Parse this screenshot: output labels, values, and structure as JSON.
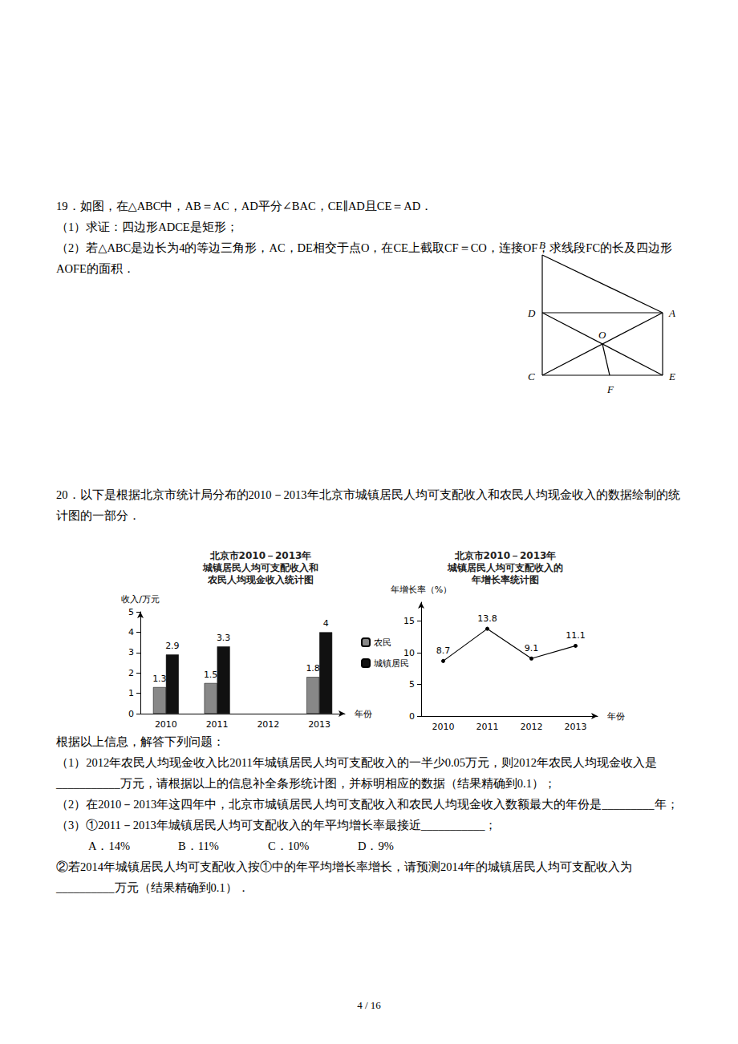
{
  "problem19": {
    "lines": [
      "19．如图，在△ABC中，AB＝AC，AD平分∠BAC，CE∥AD且CE＝AD．",
      "（1）求证：四边形ADCE是矩形；",
      "（2）若△ABC是边长为4的等边三角形，AC，DE相交于点O，在CE上截取CF＝CO，连接OF，求线段FC的长及四边形AOFE的面积．"
    ],
    "figure_labels": [
      "B",
      "D",
      "A",
      "O",
      "C",
      "F",
      "E"
    ]
  },
  "problem20": {
    "intro": "20．以下是根据北京市统计局分布的2010－2013年北京市城镇居民人均可支配收入和农民人均现金收入的数据绘制的统计图的一部分．",
    "lines": [
      "根据以上信息，解答下列问题：",
      "（1）2012年农民人均现金收入比2011年城镇居民人均可支配收入的一半少0.05万元，则2012年农民人均现金收入是___________万元，请根据以上的信息补全条形统计图，并标明相应的数据（结果精确到0.1）；",
      "（2）在2010－2013年这四年中，北京市城镇居民人均可支配收入和农民人均现金收入数额最大的年份是_________年；",
      "（3）①2011－2013年城镇居民人均可支配收入的年平均增长率最接近___________；"
    ],
    "options": [
      "A．14%",
      "B．11%",
      "C．10%",
      "D．9%"
    ],
    "last": "②若2014年城镇居民人均可支配收入按①中的年平均增长率增长，请预测2014年的城镇居民人均可支配收入为__________万元（结果精确到0.1）．"
  },
  "page_number": "4 / 16",
  "chart_data": [
    {
      "type": "bar",
      "title": [
        "北京市2010－2013年",
        "城镇居民人均可支配收入和",
        "农民人均现金收入统计图"
      ],
      "x_label": "年份",
      "y_label": "收入/万元",
      "categories": [
        "2010",
        "2011",
        "2012",
        "2013"
      ],
      "series": [
        {
          "name": "农民",
          "color": "#888888",
          "values": [
            1.3,
            1.5,
            null,
            1.8
          ]
        },
        {
          "name": "城镇居民",
          "color": "#111111",
          "values": [
            2.9,
            3.3,
            null,
            4
          ]
        }
      ],
      "ylim": [
        0,
        5
      ],
      "yticks": [
        0,
        1,
        2,
        3,
        4,
        5
      ],
      "grid": false,
      "legend": "right",
      "data_labels": true
    },
    {
      "type": "line",
      "title": [
        "北京市2010－2013年",
        "城镇居民人均可支配收入的",
        "年增长率统计图"
      ],
      "x_label": "年份",
      "y_label": "年增长率（%）",
      "categories": [
        "2010",
        "2011",
        "2012",
        "2013"
      ],
      "values": [
        8.7,
        13.8,
        9.1,
        11.1
      ],
      "color": "#000000",
      "marker": "circle",
      "ylim": [
        0,
        18
      ],
      "yticks": [
        0,
        5,
        10,
        15
      ],
      "grid": false,
      "data_labels": true
    }
  ]
}
